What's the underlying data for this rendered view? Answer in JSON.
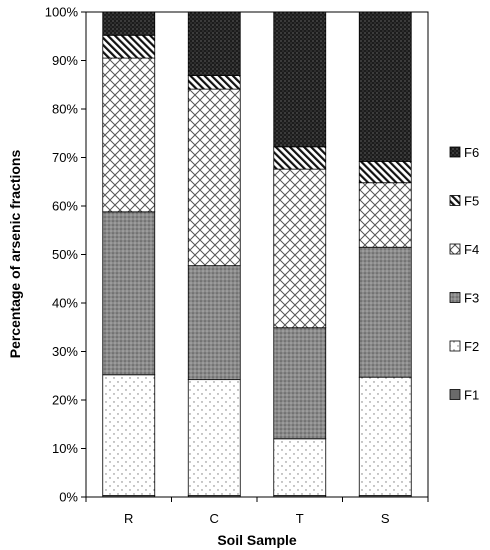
{
  "chart_data": {
    "type": "bar",
    "stacked": true,
    "normalized_percent": true,
    "title": "",
    "xlabel": "Soil Sample",
    "ylabel": "Percentage of arsenic fractions",
    "categories": [
      "R",
      "C",
      "T",
      "S"
    ],
    "y_ticks": [
      "0%",
      "10%",
      "20%",
      "30%",
      "40%",
      "50%",
      "60%",
      "70%",
      "80%",
      "90%",
      "100%"
    ],
    "ylim": [
      0,
      100
    ],
    "grid": false,
    "legend_position": "right",
    "legend_order": [
      "F6",
      "F5",
      "F4",
      "F3",
      "F2",
      "F1"
    ],
    "series": [
      {
        "name": "F1",
        "values": [
          0.3,
          0.3,
          0.3,
          0.3
        ],
        "pattern": "solid-dark"
      },
      {
        "name": "F2",
        "values": [
          24.9,
          23.9,
          11.7,
          24.4
        ],
        "pattern": "sparse-dots"
      },
      {
        "name": "F3",
        "values": [
          33.6,
          23.5,
          22.9,
          26.8
        ],
        "pattern": "dense-dots-gray"
      },
      {
        "name": "F4",
        "values": [
          31.7,
          36.4,
          32.7,
          13.3
        ],
        "pattern": "crosshatch"
      },
      {
        "name": "F5",
        "values": [
          4.7,
          2.8,
          4.6,
          4.4
        ],
        "pattern": "diagonal-stripes"
      },
      {
        "name": "F6",
        "values": [
          4.8,
          13.1,
          27.8,
          30.8
        ],
        "pattern": "dark-dots"
      }
    ]
  }
}
